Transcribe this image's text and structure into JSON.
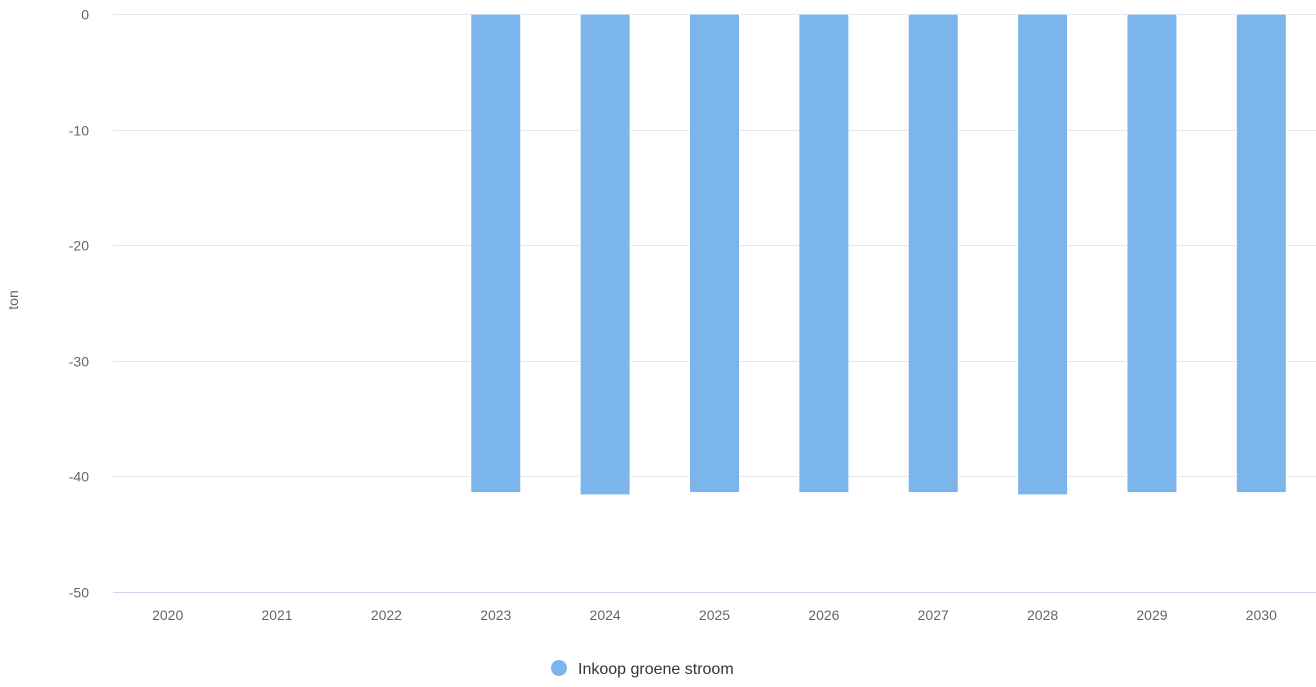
{
  "chart_data": {
    "type": "bar",
    "title": "",
    "xlabel": "",
    "ylabel": "ton",
    "ylim": [
      -50,
      0
    ],
    "yticks": [
      0,
      -10,
      -20,
      -30,
      -40,
      -50
    ],
    "grid": true,
    "legend_position": "bottom-center",
    "categories": [
      "2020",
      "2021",
      "2022",
      "2023",
      "2024",
      "2025",
      "2026",
      "2027",
      "2028",
      "2029",
      "2030"
    ],
    "series": [
      {
        "name": "Inkoop groene stroom",
        "color": "#7cb5ec",
        "values": [
          0,
          0,
          0,
          -41.4,
          -41.6,
          -41.4,
          -41.4,
          -41.4,
          -41.6,
          -41.4,
          -41.4
        ]
      }
    ]
  }
}
